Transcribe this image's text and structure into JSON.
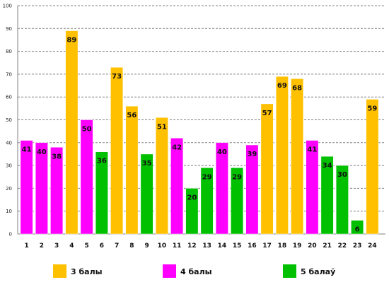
{
  "chart_data": {
    "type": "bar",
    "title": "",
    "xlabel": "",
    "ylabel": "",
    "ylim": [
      0,
      100
    ],
    "yticks": [
      0,
      10,
      20,
      30,
      40,
      50,
      60,
      70,
      80,
      90,
      100
    ],
    "grid": true,
    "legend_position": "bottom",
    "categories": [
      "1",
      "2",
      "3",
      "4",
      "5",
      "6",
      "7",
      "8",
      "9",
      "10",
      "11",
      "12",
      "13",
      "14",
      "15",
      "16",
      "17",
      "18",
      "19",
      "20",
      "21",
      "22",
      "23",
      "24"
    ],
    "values": [
      41,
      40,
      38,
      89,
      50,
      36,
      73,
      56,
      35,
      51,
      42,
      20,
      29,
      40,
      29,
      39,
      57,
      69,
      68,
      41,
      34,
      30,
      6,
      59
    ],
    "groups": [
      "4 балы",
      "4 балы",
      "4 балы",
      "3 балы",
      "4 балы",
      "5 балаў",
      "3 балы",
      "3 балы",
      "5 балаў",
      "3 балы",
      "4 балы",
      "5 балаў",
      "5 балаў",
      "4 балы",
      "5 балаў",
      "4 балы",
      "3 балы",
      "3 балы",
      "3 балы",
      "4 балы",
      "5 балаў",
      "5 балаў",
      "5 балаў",
      "3 балы"
    ],
    "legend": [
      {
        "name": "3 балы",
        "color": "#FFC000"
      },
      {
        "name": "4 балы",
        "color": "#FF00FF"
      },
      {
        "name": "5 балаў",
        "color": "#00C000"
      }
    ]
  }
}
